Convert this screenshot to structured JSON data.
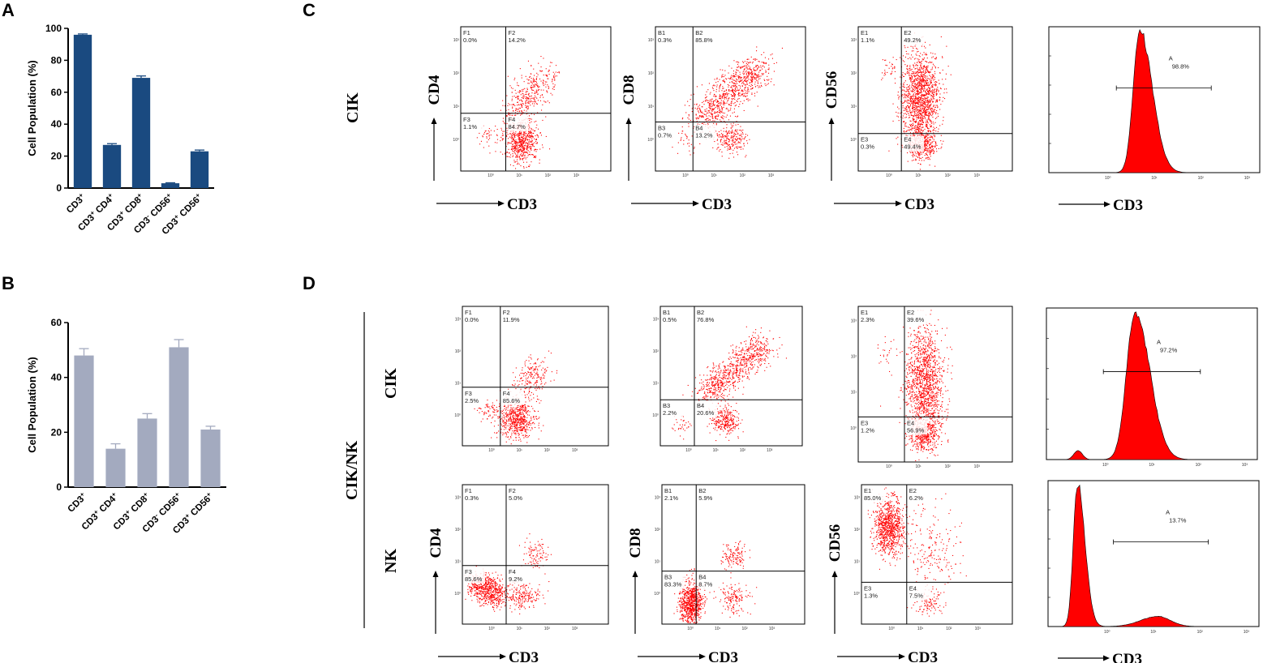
{
  "figure": {
    "panel_letters": [
      "A",
      "B",
      "C",
      "D"
    ],
    "group_label_cik_nk": "CIK/NK",
    "row_label_cik": "CIK",
    "row_label_nk": "NK",
    "colors": {
      "bar_a": "#1a4a80",
      "bar_b": "#a3aabf",
      "dots": "#ff0000",
      "hist_fill": "#ff0000"
    }
  },
  "chart_data": [
    {
      "type": "bar",
      "panel": "A",
      "categories": [
        "CD3⁺",
        "CD3⁺ CD4⁺",
        "CD3⁺ CD8⁺",
        "CD3⁻ CD56⁺",
        "CD3⁺ CD56⁺"
      ],
      "values": [
        96,
        27,
        69,
        3,
        23
      ],
      "errors": [
        0.5,
        0.8,
        1.2,
        0.3,
        0.8
      ],
      "ylabel": "Cell Population (%)",
      "ylim": [
        0,
        100
      ],
      "yticks": [
        0,
        20,
        40,
        60,
        80,
        100
      ]
    },
    {
      "type": "bar",
      "panel": "B",
      "categories": [
        "CD3⁺",
        "CD3⁺ CD4⁺",
        "CD3⁺ CD8⁺",
        "CD3⁻ CD56⁺",
        "CD3⁺ CD56⁺"
      ],
      "values": [
        48,
        14,
        25,
        51,
        21
      ],
      "errors": [
        2.5,
        1.8,
        1.8,
        2.8,
        1.2
      ],
      "ylabel": "Cell Population (%)",
      "ylim": [
        0,
        60
      ],
      "yticks": [
        0,
        20,
        40,
        60
      ]
    },
    {
      "type": "scatter",
      "panel": "C",
      "row": "CIK",
      "plots": [
        {
          "kind": "quadrant",
          "xlabel": "CD3",
          "ylabel": "CD4",
          "quadrants": [
            {
              "id": "F1",
              "value": "0.0%"
            },
            {
              "id": "F2",
              "value": "14.2%"
            },
            {
              "id": "F3",
              "value": "1.1%"
            },
            {
              "id": "F4",
              "value": "84.7%"
            }
          ]
        },
        {
          "kind": "quadrant",
          "xlabel": "CD3",
          "ylabel": "CD8",
          "quadrants": [
            {
              "id": "B1",
              "value": "0.3%"
            },
            {
              "id": "B2",
              "value": "85.8%"
            },
            {
              "id": "B3",
              "value": "0.7%"
            },
            {
              "id": "B4",
              "value": "13.2%"
            }
          ]
        },
        {
          "kind": "quadrant",
          "xlabel": "CD3",
          "ylabel": "CD56",
          "quadrants": [
            {
              "id": "E1",
              "value": "1.1%"
            },
            {
              "id": "E2",
              "value": "49.2%"
            },
            {
              "id": "E3",
              "value": "0.3%"
            },
            {
              "id": "E4",
              "value": "49.4%"
            }
          ]
        },
        {
          "kind": "histogram",
          "xlabel": "CD3",
          "gate": {
            "id": "A",
            "value": "98.8%"
          }
        }
      ]
    },
    {
      "type": "scatter",
      "panel": "D",
      "row": "CIK",
      "plots": [
        {
          "kind": "quadrant",
          "xlabel": "",
          "ylabel": "",
          "quadrants": [
            {
              "id": "F1",
              "value": "0.0%"
            },
            {
              "id": "F2",
              "value": "11.9%"
            },
            {
              "id": "F3",
              "value": "2.5%"
            },
            {
              "id": "F4",
              "value": "85.6%"
            }
          ]
        },
        {
          "kind": "quadrant",
          "xlabel": "",
          "ylabel": "",
          "quadrants": [
            {
              "id": "B1",
              "value": "0.5%"
            },
            {
              "id": "B2",
              "value": "76.8%"
            },
            {
              "id": "B3",
              "value": "2.2%"
            },
            {
              "id": "B4",
              "value": "20.6%"
            }
          ]
        },
        {
          "kind": "quadrant",
          "xlabel": "",
          "ylabel": "",
          "quadrants": [
            {
              "id": "E1",
              "value": "2.3%"
            },
            {
              "id": "E2",
              "value": "39.6%"
            },
            {
              "id": "E3",
              "value": "1.2%"
            },
            {
              "id": "E4",
              "value": "56.9%"
            }
          ]
        },
        {
          "kind": "histogram",
          "xlabel": "",
          "gate": {
            "id": "A",
            "value": "97.2%"
          }
        }
      ]
    },
    {
      "type": "scatter",
      "panel": "D",
      "row": "NK",
      "plots": [
        {
          "kind": "quadrant",
          "xlabel": "CD3",
          "ylabel": "CD4",
          "quadrants": [
            {
              "id": "F1",
              "value": "0.3%"
            },
            {
              "id": "F2",
              "value": "5.0%"
            },
            {
              "id": "F3",
              "value": "85.6%"
            },
            {
              "id": "F4",
              "value": "9.2%"
            }
          ]
        },
        {
          "kind": "quadrant",
          "xlabel": "CD3",
          "ylabel": "CD8",
          "quadrants": [
            {
              "id": "B1",
              "value": "2.1%"
            },
            {
              "id": "B2",
              "value": "5.9%"
            },
            {
              "id": "B3",
              "value": "83.3%"
            },
            {
              "id": "B4",
              "value": "8.7%"
            }
          ]
        },
        {
          "kind": "quadrant",
          "xlabel": "CD3",
          "ylabel": "CD56",
          "quadrants": [
            {
              "id": "E1",
              "value": "85.0%"
            },
            {
              "id": "E2",
              "value": "6.2%"
            },
            {
              "id": "E3",
              "value": "1.3%"
            },
            {
              "id": "E4",
              "value": "7.5%"
            }
          ]
        },
        {
          "kind": "histogram",
          "xlabel": "CD3",
          "gate": {
            "id": "A",
            "value": "13.7%"
          }
        }
      ]
    }
  ]
}
